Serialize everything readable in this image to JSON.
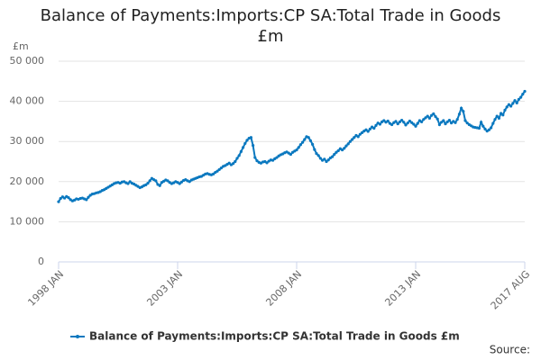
{
  "chart_data": {
    "type": "line",
    "title": "Balance of Payments:Imports:CP SA:Total Trade in Goods £m",
    "ylabel": "£m",
    "source": "Source:",
    "ylim": [
      0,
      50000
    ],
    "yticks": [
      0,
      {
        "value": 10000,
        "label": "10 000"
      },
      {
        "value": 20000,
        "label": "20 000"
      },
      {
        "value": 30000,
        "label": "30 000"
      },
      {
        "value": 40000,
        "label": "40 000"
      },
      {
        "value": 50000,
        "label": "50 000"
      }
    ],
    "grid": true,
    "legend": "bottom",
    "categories": [
      "1998 JAN",
      null,
      null,
      null,
      null,
      null,
      null,
      null,
      null,
      null,
      null,
      null,
      null,
      null,
      null,
      null,
      null,
      null,
      null,
      null,
      null,
      null,
      null,
      null,
      null,
      null,
      null,
      null,
      null,
      null,
      null,
      null,
      null,
      null,
      null,
      null,
      null,
      null,
      null,
      null,
      null,
      null,
      null,
      null,
      null,
      null,
      null,
      null,
      null,
      null,
      null,
      null,
      null,
      null,
      null,
      null,
      null,
      null,
      null,
      null,
      "2003 JAN",
      null,
      null,
      null,
      null,
      null,
      null,
      null,
      null,
      null,
      null,
      null,
      null,
      null,
      null,
      null,
      null,
      null,
      null,
      null,
      null,
      null,
      null,
      null,
      null,
      null,
      null,
      null,
      null,
      null,
      null,
      null,
      null,
      null,
      null,
      null,
      null,
      null,
      null,
      null,
      null,
      null,
      null,
      null,
      null,
      null,
      null,
      null,
      null,
      null,
      null,
      null,
      null,
      null,
      null,
      null,
      null,
      null,
      null,
      null,
      "2008 JAN",
      null,
      null,
      null,
      null,
      null,
      null,
      null,
      null,
      null,
      null,
      null,
      null,
      null,
      null,
      null,
      null,
      null,
      null,
      null,
      null,
      null,
      null,
      null,
      null,
      null,
      null,
      null,
      null,
      null,
      null,
      null,
      null,
      null,
      null,
      null,
      null,
      null,
      null,
      null,
      null,
      null,
      null,
      null,
      null,
      null,
      null,
      null,
      null,
      null,
      null,
      null,
      null,
      null,
      null,
      null,
      null,
      null,
      null,
      null,
      "2013 JAN",
      null,
      null,
      null,
      null,
      null,
      null,
      null,
      null,
      null,
      null,
      null,
      null,
      null,
      null,
      null,
      null,
      null,
      null,
      null,
      null,
      null,
      null,
      null,
      null,
      null,
      null,
      null,
      null,
      null,
      null,
      null,
      null,
      null,
      null,
      null,
      null,
      null,
      null,
      null,
      null,
      null,
      null,
      null,
      null,
      null,
      null,
      null,
      null,
      null,
      null,
      null,
      null,
      null,
      null,
      "2017 AUG"
    ],
    "series": [
      {
        "name": "Balance of Payments:Imports:CP SA:Total Trade in Goods £m",
        "color": "#0a78bf",
        "values": [
          15000,
          15800,
          16200,
          15900,
          16300,
          16000,
          15500,
          15200,
          15400,
          15700,
          15600,
          15800,
          15900,
          15700,
          15500,
          16100,
          16600,
          16900,
          17000,
          17200,
          17300,
          17500,
          17800,
          18000,
          18300,
          18600,
          18900,
          19200,
          19500,
          19700,
          19800,
          19600,
          19900,
          20000,
          19700,
          19500,
          20000,
          19600,
          19400,
          19100,
          18800,
          18500,
          18700,
          19000,
          19200,
          19600,
          20200,
          20800,
          20500,
          20200,
          19300,
          19000,
          19800,
          20100,
          20400,
          20200,
          19800,
          19500,
          19700,
          20000,
          19800,
          19500,
          19900,
          20300,
          20500,
          20200,
          20000,
          20400,
          20600,
          20800,
          21000,
          21200,
          21300,
          21600,
          21900,
          22000,
          21800,
          21700,
          21900,
          22300,
          22600,
          23000,
          23400,
          23800,
          24000,
          24300,
          24600,
          24200,
          24500,
          25000,
          25800,
          26500,
          27500,
          28500,
          29500,
          30300,
          30800,
          31000,
          29000,
          26000,
          25200,
          24800,
          24600,
          24900,
          25000,
          24700,
          25100,
          25400,
          25300,
          25700,
          26000,
          26400,
          26700,
          26900,
          27200,
          27400,
          27100,
          26800,
          27300,
          27600,
          27900,
          28500,
          29200,
          29800,
          30500,
          31200,
          31000,
          30200,
          29300,
          28000,
          27000,
          26500,
          25800,
          25300,
          25600,
          25000,
          25400,
          25900,
          26200,
          26800,
          27300,
          27700,
          28200,
          27900,
          28300,
          28900,
          29400,
          30000,
          30500,
          31000,
          31500,
          31200,
          31800,
          32200,
          32600,
          32900,
          32500,
          33100,
          33600,
          33300,
          34000,
          34600,
          34300,
          34900,
          35200,
          34800,
          35100,
          34500,
          34200,
          34700,
          35000,
          34400,
          34900,
          35300,
          34800,
          34100,
          34600,
          35100,
          34700,
          34300,
          33800,
          34500,
          35200,
          34900,
          35500,
          35900,
          36300,
          35800,
          36500,
          36900,
          36200,
          35600,
          34200,
          34800,
          35200,
          34400,
          34900,
          35300,
          34600,
          35000,
          34700,
          35500,
          36800,
          38300,
          37500,
          35200,
          34600,
          34200,
          33900,
          33600,
          33500,
          33400,
          33300,
          34800,
          33800,
          33100,
          32600,
          32900,
          33400,
          34500,
          35500,
          36300,
          35800,
          37000,
          36600,
          37800,
          38600,
          39200,
          38800,
          39500,
          40200,
          39600,
          40500,
          41000,
          41800,
          42500
        ]
      }
    ]
  }
}
